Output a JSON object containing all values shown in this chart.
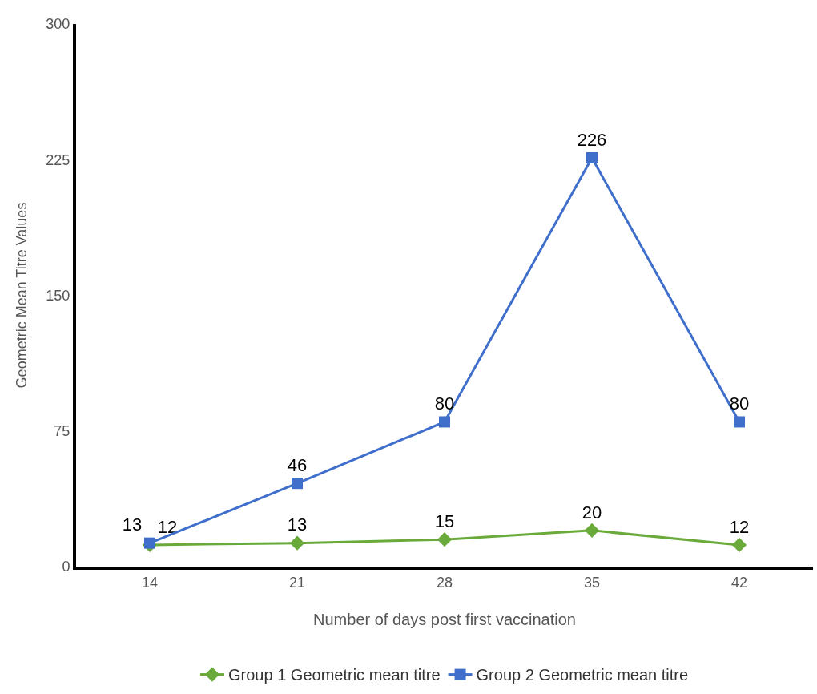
{
  "chart_data": {
    "type": "line",
    "xlabel": "Number of days post first vaccination",
    "ylabel": "Geometric Mean Titre Values",
    "categories": [
      "14",
      "21",
      "28",
      "35",
      "42"
    ],
    "series": [
      {
        "name": "Group 1 Geometric mean titre",
        "color": "#6aaa3a",
        "marker": "diamond",
        "values": [
          12,
          13,
          15,
          20,
          12
        ]
      },
      {
        "name": "Group 2 Geometric mean titre",
        "color": "#3f6fcb",
        "marker": "square",
        "values": [
          13,
          46,
          80,
          226,
          80
        ]
      }
    ],
    "ylim": [
      0,
      300
    ],
    "yticks": [
      0,
      75,
      150,
      225,
      300
    ],
    "grid": false,
    "legend": "bottom",
    "data_labels": true,
    "line_style": "solid"
  }
}
